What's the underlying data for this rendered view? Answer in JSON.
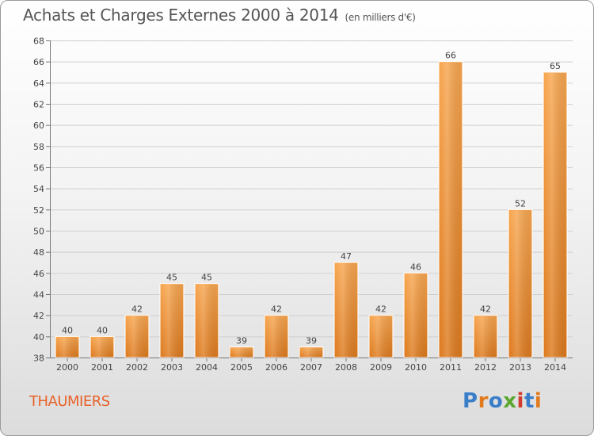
{
  "header": {
    "title": "Achats et Charges Externes 2000 à 2014",
    "unit": "(en milliers d'€)"
  },
  "footer": {
    "commune": "THAUMIERS",
    "brand": "Proxiti"
  },
  "colors": {
    "bar_light": "#f7a650",
    "bar_dark": "#dd7a1e",
    "commune": "#e8622a",
    "logo_letters": [
      "#3a7dc9",
      "#e07a1c",
      "#3a7dc9",
      "#5aa72e",
      "#d13b2b",
      "#3a7dc9",
      "#e07a1c"
    ]
  },
  "chart_data": {
    "type": "bar",
    "title": "Achats et Charges Externes 2000 à 2014",
    "subtitle": "(en milliers d'€)",
    "xlabel": "",
    "ylabel": "",
    "categories": [
      "2000",
      "2001",
      "2002",
      "2003",
      "2004",
      "2005",
      "2006",
      "2007",
      "2008",
      "2009",
      "2010",
      "2011",
      "2012",
      "2013",
      "2014"
    ],
    "values": [
      40,
      40,
      42,
      45,
      45,
      39,
      42,
      39,
      47,
      42,
      46,
      66,
      42,
      52,
      65
    ],
    "ylim": [
      38,
      68
    ],
    "ytick_step": 2,
    "grid": true,
    "data_labels": true,
    "legend": "none"
  }
}
